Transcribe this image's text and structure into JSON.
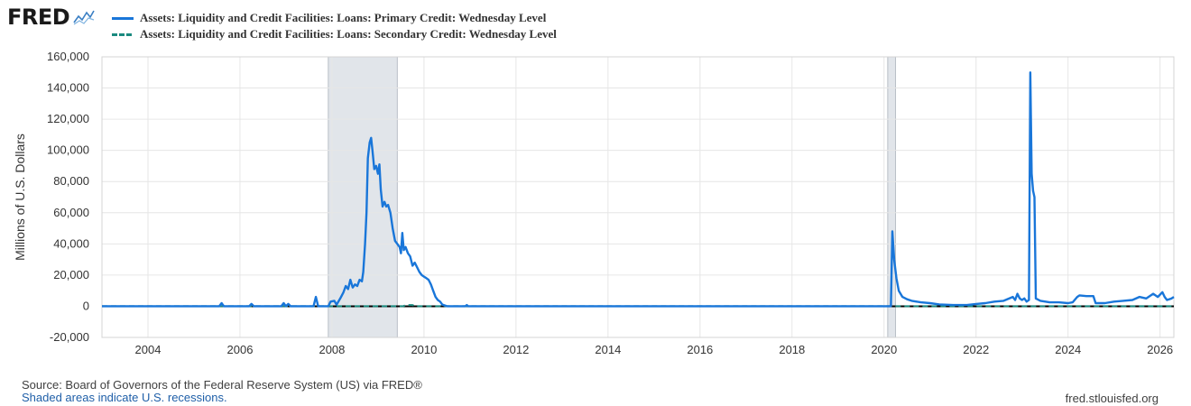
{
  "header": {
    "logo_text": "FRED",
    "logo_icon": "trend-line-icon"
  },
  "colors": {
    "primary": "#1976d9",
    "secondary": "#1a8a7f",
    "recession": "#e1e5ea",
    "grid": "#e6e6e6"
  },
  "chart_data": {
    "type": "line",
    "title": "",
    "xlabel": "",
    "ylabel": "Millions of U.S. Dollars",
    "xlim": [
      2003.0,
      2026.3
    ],
    "ylim": [
      -20000,
      160000
    ],
    "yticks": [
      -20000,
      0,
      20000,
      40000,
      60000,
      80000,
      100000,
      120000,
      140000,
      160000
    ],
    "ytick_labels": [
      "-20,000",
      "0",
      "20,000",
      "40,000",
      "60,000",
      "80,000",
      "100,000",
      "120,000",
      "140,000",
      "160,000"
    ],
    "xticks": [
      2004,
      2006,
      2008,
      2010,
      2012,
      2014,
      2016,
      2018,
      2020,
      2022,
      2024,
      2026
    ],
    "xtick_labels": [
      "2004",
      "2006",
      "2008",
      "2010",
      "2012",
      "2014",
      "2016",
      "2018",
      "2020",
      "2022",
      "2024",
      "2026"
    ],
    "grid": true,
    "legend_position": "top-left",
    "recessions": [
      [
        2007.92,
        2009.42
      ],
      [
        2020.08,
        2020.25
      ]
    ],
    "series": [
      {
        "name": "Assets: Liquidity and Credit Facilities: Loans: Primary Credit: Wednesday Level",
        "style": "solid",
        "color": "#1976d9",
        "points": [
          [
            2003.0,
            0
          ],
          [
            2005.55,
            0
          ],
          [
            2005.6,
            2000
          ],
          [
            2005.65,
            0
          ],
          [
            2006.2,
            0
          ],
          [
            2006.25,
            1500
          ],
          [
            2006.3,
            0
          ],
          [
            2006.9,
            0
          ],
          [
            2006.95,
            2000
          ],
          [
            2007.0,
            0
          ],
          [
            2007.05,
            1500
          ],
          [
            2007.1,
            0
          ],
          [
            2007.6,
            0
          ],
          [
            2007.65,
            6000
          ],
          [
            2007.7,
            0
          ],
          [
            2007.92,
            0
          ],
          [
            2007.97,
            3000
          ],
          [
            2008.05,
            3500
          ],
          [
            2008.1,
            1000
          ],
          [
            2008.18,
            5000
          ],
          [
            2008.25,
            9000
          ],
          [
            2008.3,
            13000
          ],
          [
            2008.35,
            11000
          ],
          [
            2008.4,
            17000
          ],
          [
            2008.45,
            12000
          ],
          [
            2008.5,
            14000
          ],
          [
            2008.55,
            13000
          ],
          [
            2008.6,
            17000
          ],
          [
            2008.65,
            16000
          ],
          [
            2008.68,
            22000
          ],
          [
            2008.72,
            40000
          ],
          [
            2008.75,
            60000
          ],
          [
            2008.78,
            95000
          ],
          [
            2008.82,
            105000
          ],
          [
            2008.85,
            108000
          ],
          [
            2008.88,
            100000
          ],
          [
            2008.92,
            88000
          ],
          [
            2008.96,
            90000
          ],
          [
            2009.0,
            85000
          ],
          [
            2009.03,
            91000
          ],
          [
            2009.06,
            75000
          ],
          [
            2009.1,
            64000
          ],
          [
            2009.14,
            67000
          ],
          [
            2009.18,
            64000
          ],
          [
            2009.22,
            65000
          ],
          [
            2009.27,
            60000
          ],
          [
            2009.32,
            50000
          ],
          [
            2009.37,
            42000
          ],
          [
            2009.42,
            40000
          ],
          [
            2009.47,
            38000
          ],
          [
            2009.5,
            34000
          ],
          [
            2009.53,
            47000
          ],
          [
            2009.56,
            36000
          ],
          [
            2009.6,
            38000
          ],
          [
            2009.65,
            34000
          ],
          [
            2009.7,
            32000
          ],
          [
            2009.75,
            26000
          ],
          [
            2009.8,
            28000
          ],
          [
            2009.85,
            25000
          ],
          [
            2009.9,
            22000
          ],
          [
            2009.95,
            20000
          ],
          [
            2010.0,
            19000
          ],
          [
            2010.05,
            18000
          ],
          [
            2010.1,
            17000
          ],
          [
            2010.15,
            14000
          ],
          [
            2010.2,
            10000
          ],
          [
            2010.25,
            6000
          ],
          [
            2010.3,
            4000
          ],
          [
            2010.35,
            3000
          ],
          [
            2010.4,
            1000
          ],
          [
            2010.5,
            0
          ],
          [
            2010.9,
            0
          ],
          [
            2010.93,
            800
          ],
          [
            2010.96,
            0
          ],
          [
            2020.15,
            0
          ],
          [
            2020.18,
            48000
          ],
          [
            2020.22,
            30000
          ],
          [
            2020.27,
            18000
          ],
          [
            2020.32,
            10000
          ],
          [
            2020.4,
            6000
          ],
          [
            2020.5,
            4500
          ],
          [
            2020.6,
            3500
          ],
          [
            2020.8,
            2500
          ],
          [
            2021.0,
            2000
          ],
          [
            2021.2,
            1200
          ],
          [
            2021.5,
            800
          ],
          [
            2021.8,
            800
          ],
          [
            2022.0,
            1500
          ],
          [
            2022.2,
            2000
          ],
          [
            2022.4,
            3000
          ],
          [
            2022.6,
            3500
          ],
          [
            2022.8,
            6000
          ],
          [
            2022.85,
            4000
          ],
          [
            2022.9,
            8000
          ],
          [
            2022.95,
            5000
          ],
          [
            2023.0,
            4000
          ],
          [
            2023.05,
            5000
          ],
          [
            2023.1,
            3000
          ],
          [
            2023.15,
            4000
          ],
          [
            2023.18,
            150000
          ],
          [
            2023.21,
            85000
          ],
          [
            2023.24,
            74000
          ],
          [
            2023.27,
            70000
          ],
          [
            2023.3,
            5000
          ],
          [
            2023.4,
            3500
          ],
          [
            2023.6,
            2500
          ],
          [
            2023.8,
            2500
          ],
          [
            2024.0,
            2000
          ],
          [
            2024.1,
            2500
          ],
          [
            2024.2,
            6000
          ],
          [
            2024.25,
            7000
          ],
          [
            2024.4,
            6500
          ],
          [
            2024.55,
            6500
          ],
          [
            2024.6,
            2000
          ],
          [
            2024.8,
            2000
          ],
          [
            2025.0,
            3000
          ],
          [
            2025.2,
            3500
          ],
          [
            2025.4,
            4000
          ],
          [
            2025.55,
            6000
          ],
          [
            2025.7,
            5000
          ],
          [
            2025.85,
            8000
          ],
          [
            2025.95,
            6000
          ],
          [
            2026.05,
            9000
          ],
          [
            2026.1,
            6000
          ],
          [
            2026.15,
            4000
          ],
          [
            2026.25,
            5000
          ],
          [
            2026.3,
            6000
          ]
        ]
      },
      {
        "name": "Assets: Liquidity and Credit Facilities: Loans: Secondary Credit: Wednesday Level",
        "style": "dashed",
        "color": "#1a8a7f",
        "points": [
          [
            2003.0,
            0
          ],
          [
            2009.55,
            0
          ],
          [
            2009.6,
            800
          ],
          [
            2009.75,
            800
          ],
          [
            2009.8,
            0
          ],
          [
            2026.3,
            0
          ]
        ]
      }
    ]
  },
  "footer": {
    "source": "Source: Board of Governors of the Federal Reserve System (US) via FRED®",
    "note": "Shaded areas indicate U.S. recessions.",
    "url": "fred.stlouisfed.org"
  }
}
